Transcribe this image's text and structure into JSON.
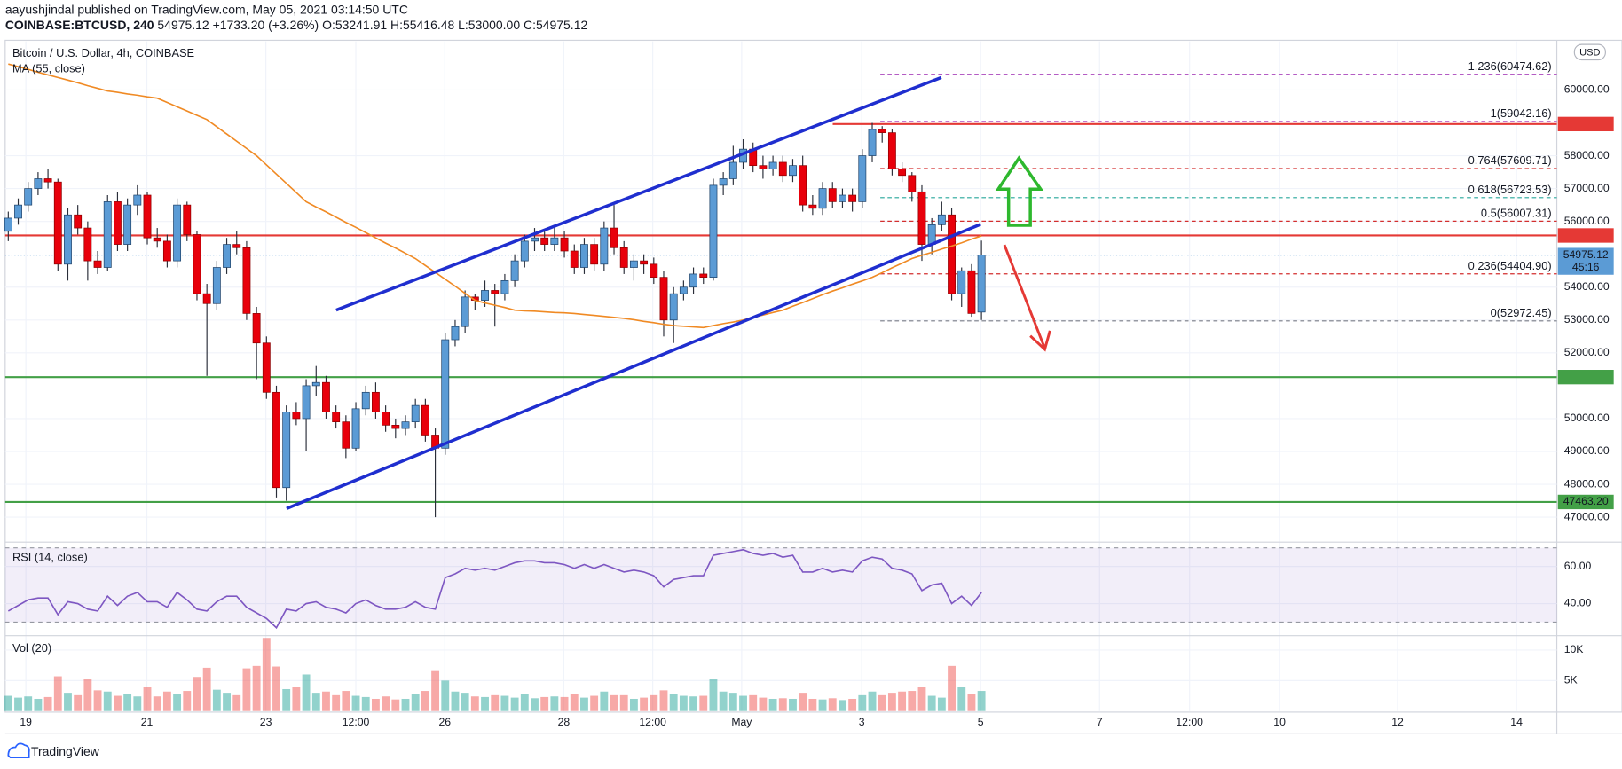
{
  "header": {
    "byline": "aayushjindal published on TradingView.com, May 05, 2021 03:14:50 UTC",
    "symbol": "COINBASE:BTCUSD, 240",
    "last": "54975.12",
    "change": "+1733.20 (+3.26%)",
    "open": "O:53241.91",
    "high": "H:55416.48",
    "low": "L:53000.00",
    "close": "C:54975.12"
  },
  "chart_data": {
    "type": "candlestick",
    "title": "Bitcoin / U.S. Dollar, 4h, COINBASE",
    "currency": "USD",
    "up_color": "#5b9bd5",
    "down_color": "#e8000b",
    "ylim": [
      46320,
      61480
    ],
    "yticks": [
      {
        "value": 47000,
        "label": "47000.00"
      },
      {
        "value": 48000,
        "label": "48000.00"
      },
      {
        "value": 49000,
        "label": "49000.00"
      },
      {
        "value": 50000,
        "label": "50000.00"
      },
      {
        "value": 52000,
        "label": "52000.00"
      },
      {
        "value": 53000,
        "label": "53000.00"
      },
      {
        "value": 54000,
        "label": "54000.00"
      },
      {
        "value": 56000,
        "label": "56000.00"
      },
      {
        "value": 57000,
        "label": "57000.00"
      },
      {
        "value": 58000,
        "label": "58000.00"
      },
      {
        "value": 60000,
        "label": "60000.00"
      }
    ],
    "x_ticks": [
      "19",
      "21",
      "23",
      "12:00",
      "26",
      "28",
      "12:00",
      "May",
      "3",
      "5",
      "7",
      "12:00",
      "10",
      "12",
      "14"
    ],
    "candles": [
      [
        55700,
        56300,
        55400,
        56100
      ],
      [
        56100,
        56700,
        55900,
        56500
      ],
      [
        56500,
        57200,
        56300,
        57000
      ],
      [
        57000,
        57500,
        56800,
        57300
      ],
      [
        57300,
        57600,
        57000,
        57200
      ],
      [
        57200,
        57300,
        54500,
        54700
      ],
      [
        54700,
        56400,
        54200,
        56200
      ],
      [
        56200,
        56500,
        55600,
        55800
      ],
      [
        55800,
        56000,
        54200,
        54800
      ],
      [
        54800,
        55100,
        54400,
        54600
      ],
      [
        54600,
        56800,
        54500,
        56600
      ],
      [
        56600,
        56900,
        55100,
        55300
      ],
      [
        55300,
        56700,
        55100,
        56500
      ],
      [
        56500,
        57100,
        56200,
        56800
      ],
      [
        56800,
        56900,
        55300,
        55500
      ],
      [
        55500,
        55800,
        55200,
        55400
      ],
      [
        55400,
        55600,
        54600,
        54800
      ],
      [
        54800,
        56700,
        54600,
        56500
      ],
      [
        56500,
        56600,
        55400,
        55600
      ],
      [
        55600,
        55700,
        53600,
        53800
      ],
      [
        53800,
        54100,
        51300,
        53500
      ],
      [
        53500,
        54800,
        53300,
        54600
      ],
      [
        54600,
        55500,
        54400,
        55300
      ],
      [
        55300,
        55700,
        55000,
        55200
      ],
      [
        55200,
        55400,
        53000,
        53200
      ],
      [
        53200,
        53400,
        51200,
        52300
      ],
      [
        52300,
        52500,
        50600,
        50800
      ],
      [
        50800,
        51000,
        47600,
        47900
      ],
      [
        47900,
        50400,
        47500,
        50200
      ],
      [
        50200,
        50500,
        49800,
        50000
      ],
      [
        50000,
        51200,
        49000,
        51000
      ],
      [
        51000,
        51600,
        50700,
        51100
      ],
      [
        51100,
        51300,
        50000,
        50200
      ],
      [
        50200,
        50400,
        49700,
        49900
      ],
      [
        49900,
        50100,
        48800,
        49100
      ],
      [
        49100,
        50500,
        49000,
        50300
      ],
      [
        50300,
        51000,
        50100,
        50800
      ],
      [
        50800,
        51100,
        50000,
        50200
      ],
      [
        50200,
        50400,
        49600,
        49800
      ],
      [
        49800,
        50000,
        49400,
        49700
      ],
      [
        49700,
        50100,
        49500,
        49900
      ],
      [
        49900,
        50600,
        49700,
        50400
      ],
      [
        50400,
        50600,
        49300,
        49500
      ],
      [
        49500,
        49700,
        47000,
        49100
      ],
      [
        49100,
        52600,
        48900,
        52400
      ],
      [
        52400,
        53000,
        52200,
        52800
      ],
      [
        52800,
        53900,
        52600,
        53700
      ],
      [
        53700,
        53800,
        53300,
        53600
      ],
      [
        53600,
        54200,
        53400,
        53900
      ],
      [
        53900,
        54100,
        52800,
        53800
      ],
      [
        53800,
        54400,
        53600,
        54200
      ],
      [
        54200,
        55000,
        54000,
        54800
      ],
      [
        54800,
        55600,
        54600,
        55400
      ],
      [
        55400,
        55800,
        55100,
        55500
      ],
      [
        55500,
        55700,
        55100,
        55300
      ],
      [
        55300,
        55800,
        55100,
        55500
      ],
      [
        55500,
        55700,
        54900,
        55100
      ],
      [
        55100,
        55300,
        54400,
        54600
      ],
      [
        54600,
        55500,
        54400,
        55300
      ],
      [
        55300,
        55500,
        54500,
        54700
      ],
      [
        54700,
        56000,
        54500,
        55800
      ],
      [
        55800,
        56500,
        55000,
        55200
      ],
      [
        55200,
        55400,
        54400,
        54600
      ],
      [
        54600,
        55000,
        54200,
        54800
      ],
      [
        54800,
        55000,
        54400,
        54700
      ],
      [
        54700,
        54900,
        54100,
        54300
      ],
      [
        54300,
        54500,
        52500,
        53000
      ],
      [
        53000,
        54000,
        52300,
        53800
      ],
      [
        53800,
        54200,
        53600,
        54000
      ],
      [
        54000,
        54600,
        53800,
        54400
      ],
      [
        54400,
        54600,
        54100,
        54300
      ],
      [
        54300,
        57300,
        54200,
        57100
      ],
      [
        57100,
        57500,
        56800,
        57300
      ],
      [
        57300,
        58300,
        57100,
        57800
      ],
      [
        57800,
        58500,
        57600,
        58200
      ],
      [
        58200,
        58400,
        57500,
        57700
      ],
      [
        57700,
        58000,
        57300,
        57600
      ],
      [
        57600,
        58000,
        57400,
        57800
      ],
      [
        57800,
        58000,
        57200,
        57400
      ],
      [
        57400,
        57900,
        57200,
        57700
      ],
      [
        57700,
        58000,
        56300,
        56500
      ],
      [
        56500,
        56800,
        56200,
        56400
      ],
      [
        56400,
        57200,
        56200,
        57000
      ],
      [
        57000,
        57200,
        56400,
        56600
      ],
      [
        56600,
        57000,
        56400,
        56800
      ],
      [
        56800,
        57000,
        56300,
        56600
      ],
      [
        56600,
        58200,
        56400,
        58000
      ],
      [
        58000,
        59000,
        57800,
        58800
      ],
      [
        58800,
        58900,
        58400,
        58700
      ],
      [
        58700,
        58800,
        57400,
        57600
      ],
      [
        57600,
        57800,
        57200,
        57400
      ],
      [
        57400,
        57500,
        56600,
        56900
      ],
      [
        56900,
        57100,
        54800,
        55300
      ],
      [
        55300,
        56100,
        55000,
        55900
      ],
      [
        55900,
        56600,
        55700,
        56200
      ],
      [
        56200,
        56400,
        53600,
        53800
      ],
      [
        53800,
        54600,
        53400,
        54500
      ],
      [
        54500,
        54700,
        53100,
        53200
      ],
      [
        53241.91,
        55416.48,
        53000,
        54975.12
      ]
    ],
    "ma": {
      "name": "MA (55, close)",
      "color": "#f08a24",
      "values": [
        60790,
        60710,
        60630,
        60540,
        60460,
        60380,
        60300,
        60220,
        60130,
        60050,
        59970,
        59930,
        59880,
        59840,
        59790,
        59750,
        59620,
        59490,
        59360,
        59230,
        59100,
        58880,
        58660,
        58440,
        58220,
        58000,
        57720,
        57440,
        57160,
        56880,
        56600,
        56440,
        56290,
        56130,
        55970,
        55820,
        55660,
        55500,
        55340,
        55190,
        55030,
        54870,
        54660,
        54450,
        54240,
        54030,
        53810,
        53600,
        53520,
        53450,
        53380,
        53300,
        53280,
        53270,
        53250,
        53230,
        53220,
        53200,
        53170,
        53140,
        53110,
        53080,
        53050,
        53010,
        52960,
        52920,
        52870,
        52830,
        52810,
        52790,
        52770,
        52830,
        52890,
        52940,
        53000,
        53080,
        53150,
        53230,
        53300,
        53420,
        53530,
        53650,
        53770,
        53880,
        53980,
        54090,
        54190,
        54300,
        54440,
        54590,
        54730,
        54870,
        54970,
        55060,
        55160,
        55250,
        55350,
        55460,
        55560
      ]
    },
    "levels": [
      {
        "value": 58963.68,
        "color": "#e53935",
        "from_fib": true
      },
      {
        "value": 55572.78,
        "color": "#e53935"
      },
      {
        "value": 51262.68,
        "color": "#43a047"
      },
      {
        "value": 47463.2,
        "label": "47463.20",
        "color": "#43a047"
      }
    ],
    "fib": [
      {
        "label": "1.236(60474.62)",
        "value": 60474.62,
        "color": "#9c27b0"
      },
      {
        "label": "1(59042.16)",
        "value": 59042.16,
        "color": "#9c27b0"
      },
      {
        "label": "0.764(57609.71)",
        "value": 57609.71,
        "color": "#d32f2f"
      },
      {
        "label": "0.618(56723.53)",
        "value": 56723.53,
        "color": "#26a69a"
      },
      {
        "label": "0.5(56007.31)",
        "value": 56007.31,
        "color": "#d32f2f"
      },
      {
        "label": "0.236(54404.90)",
        "value": 54404.9,
        "color": "#d32f2f"
      },
      {
        "label": "0(52972.45)",
        "value": 52972.45,
        "color": "#787b86"
      }
    ],
    "last_price": {
      "value": 54975.12,
      "countdown": "45:16",
      "color": "#5b9bd5"
    },
    "rsi": {
      "name": "RSI (14, close)",
      "color": "#7e57c2",
      "ylim": [
        23.3,
        71.7
      ],
      "bands": [
        70,
        30
      ],
      "yticks": [
        {
          "value": 40,
          "label": "40.00"
        },
        {
          "value": 60,
          "label": "60.00"
        }
      ],
      "values": [
        36,
        39,
        42,
        43,
        43,
        34,
        41,
        40,
        37,
        36,
        44,
        39,
        44,
        46,
        41,
        41,
        38,
        46,
        42,
        37,
        36,
        41,
        44,
        44,
        38,
        35,
        32,
        27,
        37,
        36,
        40,
        41,
        38,
        37,
        35,
        40,
        42,
        39,
        37,
        37,
        38,
        41,
        38,
        37,
        54,
        56,
        59,
        58,
        59,
        58,
        60,
        62,
        63,
        63,
        62,
        62,
        61,
        59,
        61,
        59,
        61,
        59,
        57,
        58,
        57,
        55,
        49,
        53,
        54,
        55,
        55,
        66,
        67,
        68,
        69,
        67,
        66,
        67,
        65,
        66,
        57,
        57,
        59,
        57,
        58,
        57,
        63,
        65,
        64,
        59,
        58,
        56,
        47,
        50,
        51,
        40,
        44,
        39,
        46
      ]
    },
    "volume": {
      "name": "Vol (20)",
      "ylim": [
        0,
        12200
      ],
      "up_color": "rgba(38,166,154,0.5)",
      "down_color": "rgba(239,83,80,0.5)",
      "yticks": [
        {
          "value": 5000,
          "label": "5K"
        },
        {
          "value": 10000,
          "label": "10K"
        }
      ],
      "values": [
        2500,
        2200,
        2400,
        2000,
        2300,
        5700,
        3000,
        2600,
        5300,
        3400,
        3200,
        2500,
        2800,
        2400,
        4000,
        2400,
        3200,
        2800,
        3300,
        5600,
        7100,
        3500,
        3000,
        2600,
        7000,
        7400,
        12000,
        7300,
        3600,
        4000,
        6000,
        3000,
        3200,
        2600,
        3300,
        2500,
        2300,
        2000,
        2400,
        1900,
        2000,
        2800,
        3300,
        6700,
        5000,
        3200,
        3000,
        2400,
        2300,
        2600,
        2500,
        2200,
        2800,
        2100,
        2300,
        2400,
        2300,
        2800,
        2200,
        2500,
        3200,
        2600,
        2600,
        2000,
        2200,
        2600,
        3400,
        2800,
        2500,
        2400,
        2500,
        5300,
        3200,
        3000,
        2500,
        2600,
        2200,
        2000,
        2100,
        2000,
        3000,
        2000,
        1900,
        2100,
        1800,
        2000,
        2600,
        3200,
        2600,
        3000,
        3200,
        3300,
        4000,
        2500,
        2200,
        7400,
        4000,
        2800,
        3300
      ]
    }
  },
  "footer": {
    "brand": "TradingView"
  }
}
